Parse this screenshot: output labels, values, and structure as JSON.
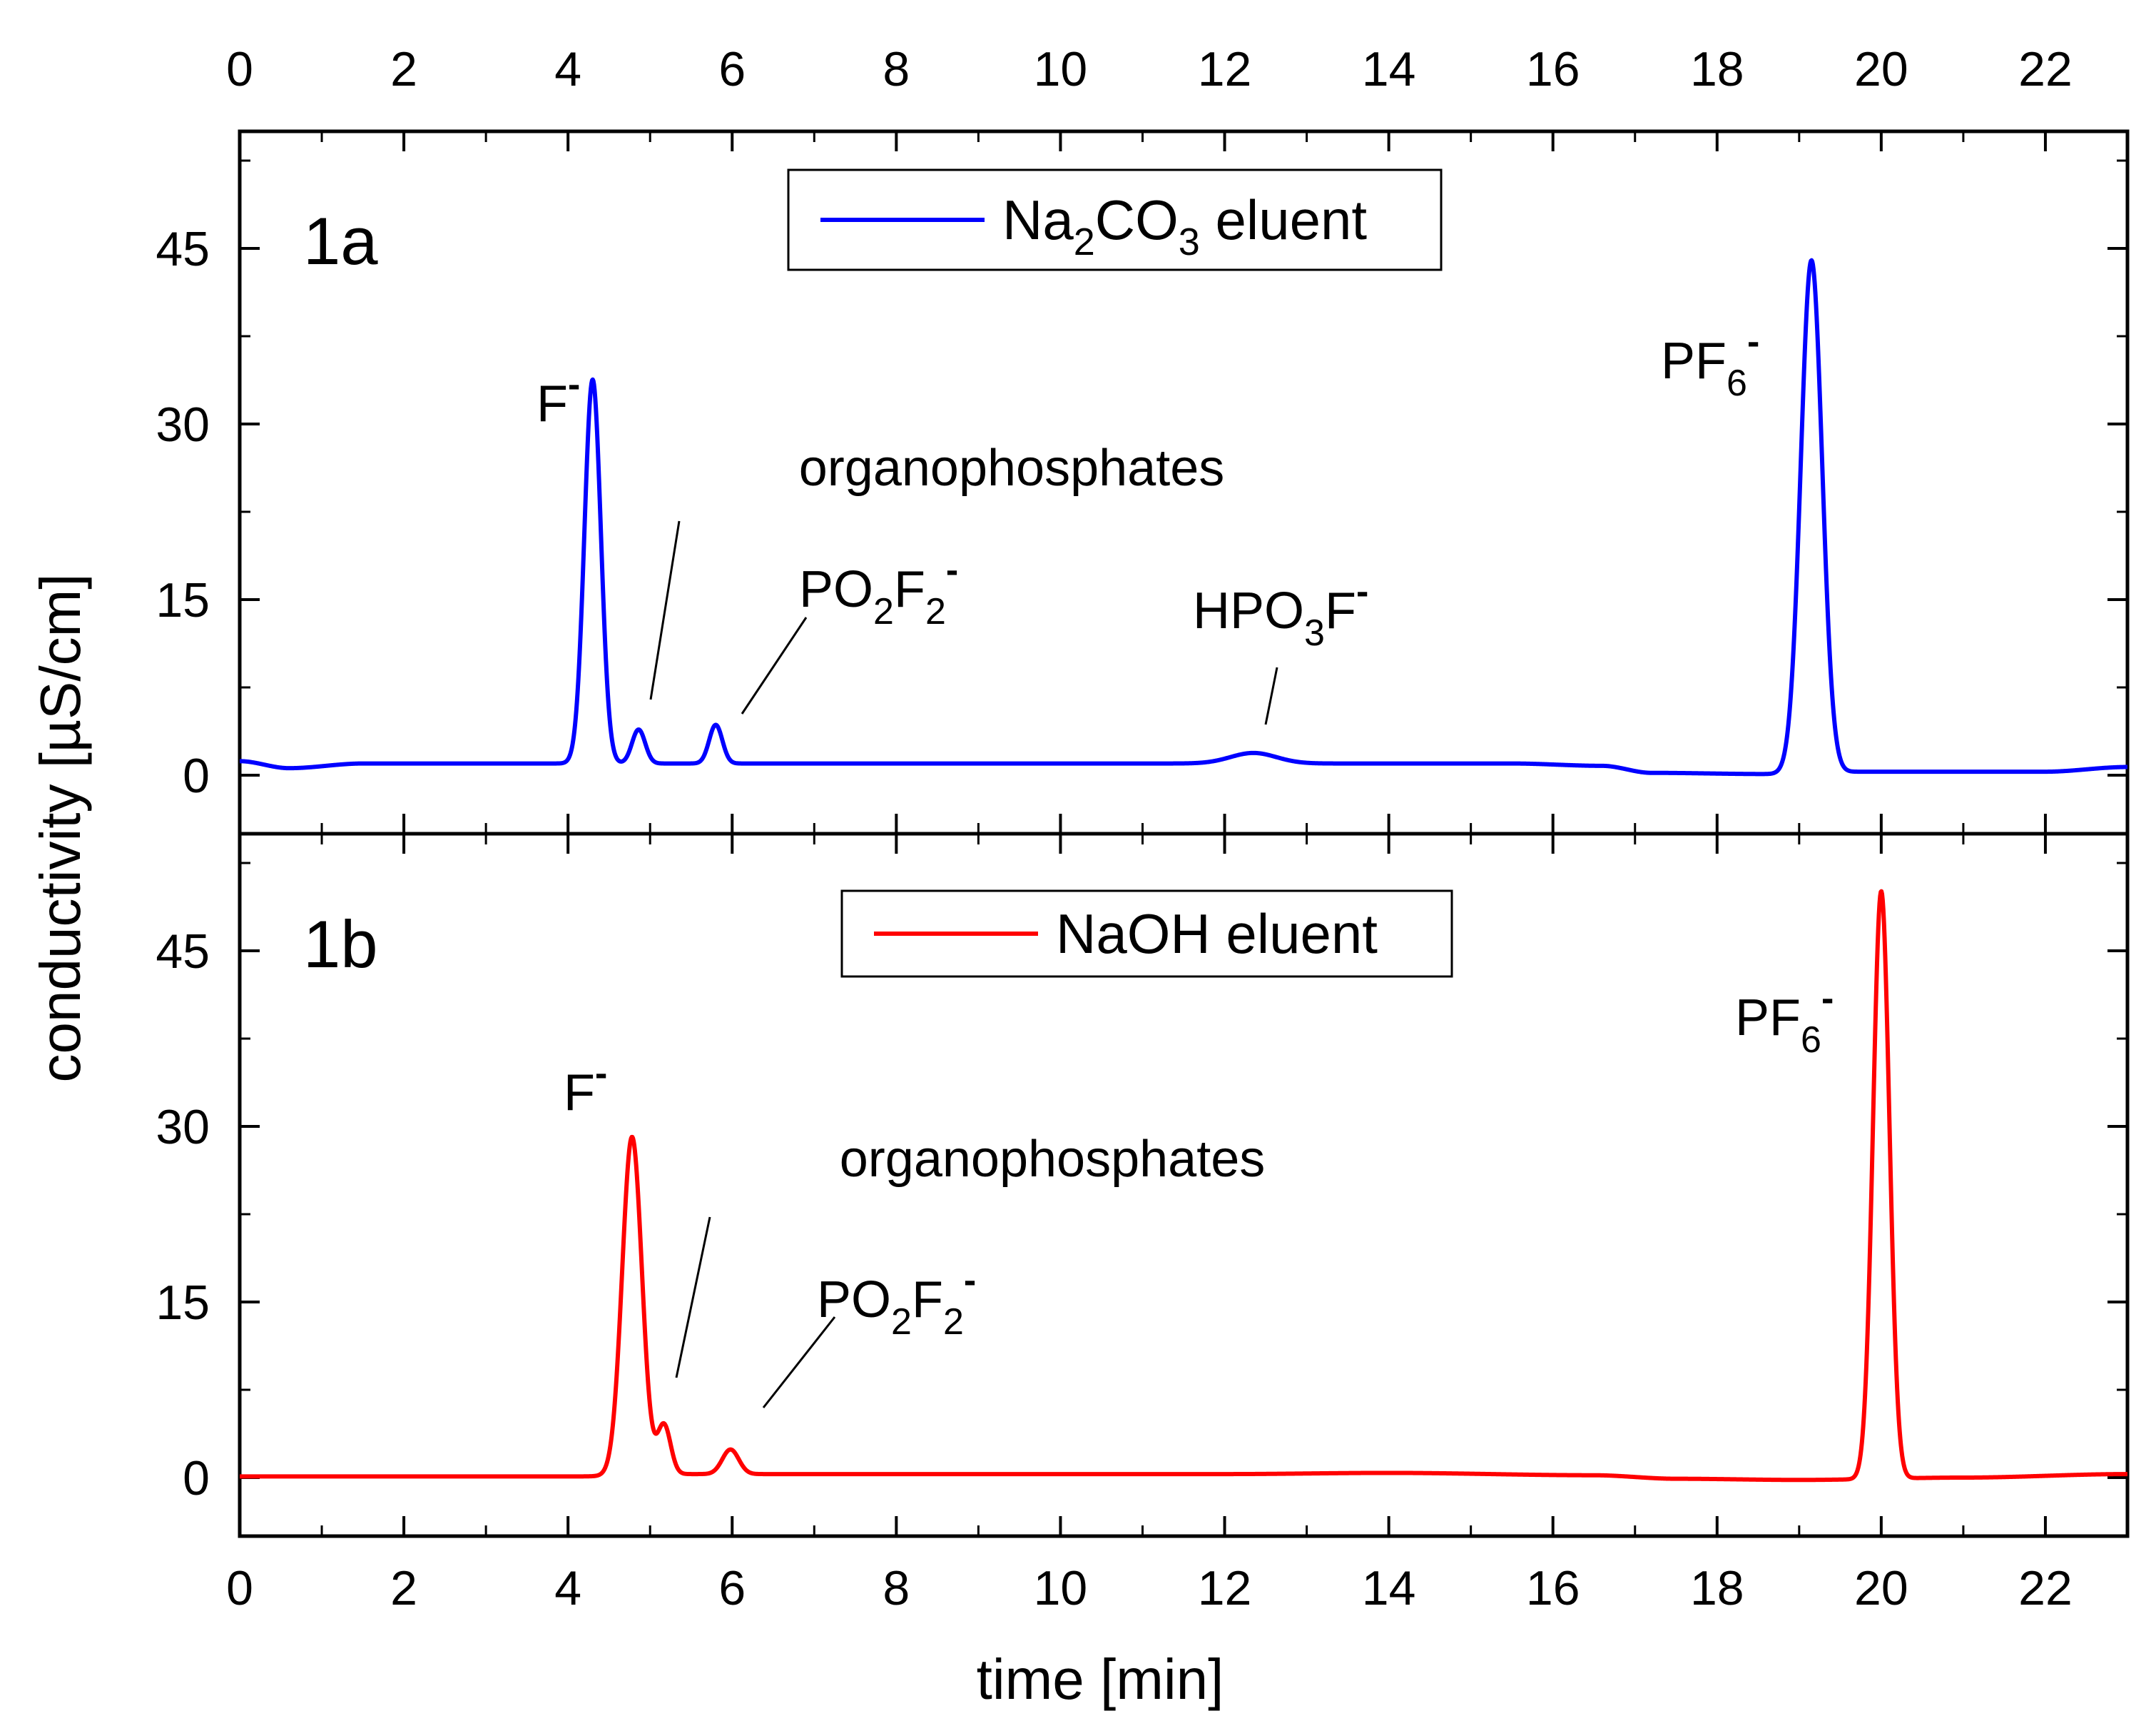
{
  "chart_data": [
    {
      "panel": "1a",
      "type": "line",
      "xlabel": "time [min]",
      "ylabel": "conductivity [µS/cm]",
      "xlim": [
        0,
        23
      ],
      "ylim": [
        -5,
        55
      ],
      "xticks": [
        0,
        2,
        4,
        6,
        8,
        10,
        12,
        14,
        16,
        18,
        20,
        22
      ],
      "yticks": [
        0,
        15,
        30,
        45
      ],
      "legend": {
        "label": "Na₂CO₃ eluent",
        "position": "top-center"
      },
      "series": [
        {
          "name": "Na₂CO₃ eluent",
          "color": "#0000ff",
          "baseline": [
            [
              0,
              1.2
            ],
            [
              0.6,
              0.6
            ],
            [
              1.5,
              1.0
            ],
            [
              4.0,
              1.0
            ],
            [
              5.2,
              1.0
            ],
            [
              11.5,
              1.0
            ],
            [
              15.5,
              1.0
            ],
            [
              16.6,
              0.8
            ],
            [
              17.2,
              0.2
            ],
            [
              18.6,
              0.1
            ],
            [
              19.8,
              0.3
            ],
            [
              22.0,
              0.3
            ],
            [
              23.0,
              0.7
            ]
          ],
          "peaks": [
            {
              "label": "F⁻",
              "t": 4.3,
              "height": 32.8,
              "width": 0.1
            },
            {
              "label": "organophosphates",
              "t": 4.86,
              "height": 2.9,
              "width": 0.08
            },
            {
              "label": "PO₂F₂⁻",
              "t": 5.8,
              "height": 3.3,
              "width": 0.08
            },
            {
              "label": "HPO₃F⁻",
              "t": 12.35,
              "height": 0.9,
              "width": 0.28
            },
            {
              "label": "PF₆⁻",
              "t": 19.15,
              "height": 43.8,
              "width": 0.13
            }
          ]
        }
      ],
      "annotations": [
        {
          "text": "F",
          "superscript": "-",
          "t": 4.3
        },
        {
          "text": "organophosphates",
          "t": 4.86
        },
        {
          "text": "PO",
          "sub1": "2",
          "mid": "F",
          "sub2": "2",
          "superscript": "-",
          "t": 5.8
        },
        {
          "text": "HPO",
          "sub1": "3",
          "mid": "F",
          "superscript": "-",
          "t": 12.35
        },
        {
          "text": "PF",
          "sub1": "6",
          "superscript": "-",
          "t": 19.15
        }
      ]
    },
    {
      "panel": "1b",
      "type": "line",
      "xlabel": "time [min]",
      "ylabel": "conductivity [µS/cm]",
      "xlim": [
        0,
        23
      ],
      "ylim": [
        -5,
        55
      ],
      "xticks": [
        0,
        2,
        4,
        6,
        8,
        10,
        12,
        14,
        16,
        18,
        20,
        22
      ],
      "yticks": [
        0,
        15,
        30,
        45
      ],
      "legend": {
        "label": "NaOH eluent",
        "position": "top-center"
      },
      "series": [
        {
          "name": "NaOH eluent",
          "color": "#ff0000",
          "baseline": [
            [
              0,
              0.1
            ],
            [
              4.1,
              0.1
            ],
            [
              5.4,
              0.3
            ],
            [
              6.2,
              0.3
            ],
            [
              12.0,
              0.3
            ],
            [
              14.0,
              0.4
            ],
            [
              16.5,
              0.2
            ],
            [
              17.5,
              -0.1
            ],
            [
              19.0,
              -0.2
            ],
            [
              21.0,
              0.0
            ],
            [
              23.0,
              0.3
            ]
          ],
          "peaks": [
            {
              "label": "F⁻",
              "t": 4.78,
              "height": 28.9,
              "width": 0.12
            },
            {
              "label": "organophosphates",
              "t": 5.17,
              "height": 4.2,
              "width": 0.08
            },
            {
              "label": "PO₂F₂⁻",
              "t": 5.98,
              "height": 2.1,
              "width": 0.1
            },
            {
              "label": "PF₆⁻",
              "t": 20.0,
              "height": 50.2,
              "width": 0.1
            }
          ]
        }
      ],
      "annotations": [
        {
          "text": "F",
          "superscript": "-",
          "t": 4.78
        },
        {
          "text": "organophosphates",
          "t": 5.17
        },
        {
          "text": "PO",
          "sub1": "2",
          "mid": "F",
          "sub2": "2",
          "superscript": "-",
          "t": 5.98
        },
        {
          "text": "PF",
          "sub1": "6",
          "superscript": "-",
          "t": 20.0
        }
      ]
    }
  ]
}
